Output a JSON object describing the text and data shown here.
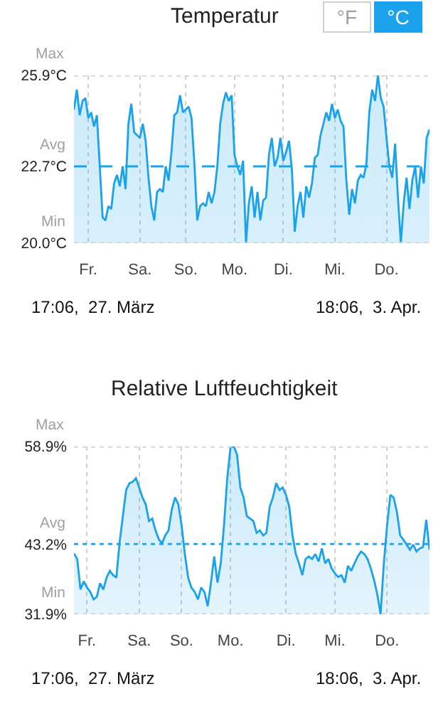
{
  "chart_data": [
    {
      "type": "area",
      "title": "Temperatur",
      "color": "#1aa3ec",
      "grid": "x",
      "ylim": [
        20.0,
        25.9
      ],
      "categories": [
        null,
        null,
        null,
        null,
        null,
        "Fr.",
        null,
        null,
        null,
        null,
        null,
        null,
        null,
        null,
        null,
        null,
        null,
        null,
        null,
        null,
        null,
        null,
        null,
        "Sa.",
        null,
        null,
        null,
        null,
        null,
        null,
        null,
        null,
        null,
        null,
        null,
        null,
        null,
        null,
        null,
        "So.",
        null,
        null,
        null,
        null,
        null,
        null,
        null,
        null,
        null,
        null,
        null,
        null,
        null,
        null,
        null,
        null,
        "Mo.",
        null,
        null,
        null,
        null,
        null,
        null,
        null,
        null,
        null,
        null,
        null,
        null,
        null,
        null,
        null,
        null,
        "Di.",
        null,
        null,
        null,
        null,
        null,
        null,
        null,
        null,
        null,
        null,
        null,
        null,
        null,
        null,
        null,
        null,
        null,
        "Mi.",
        null,
        null,
        null,
        null,
        null,
        null,
        null,
        null,
        null,
        null,
        null,
        null,
        null,
        null,
        null,
        null,
        null,
        "Do.",
        null,
        null,
        null,
        null,
        null,
        null,
        null,
        null,
        null,
        null,
        null,
        null,
        null,
        null,
        null
      ],
      "yticks": [
        {
          "value": 20.0,
          "label": "20.0°C"
        },
        {
          "value": 22.7,
          "label": "22.7°C"
        },
        {
          "value": 25.9,
          "label": "25.9°C"
        }
      ],
      "ref_lines": [
        {
          "axis": "y",
          "value": 25.9,
          "label": "Max",
          "color": "#cfcfcf",
          "line_style": "dotted"
        },
        {
          "axis": "y",
          "value": 22.7,
          "label": "Avg",
          "color": "#1aa3ec",
          "line_style": "dashed"
        },
        {
          "axis": "y",
          "value": 20.0,
          "label": "Min",
          "color": "#cfcfcf",
          "line_style": "dotted"
        }
      ],
      "annotations": [
        "°F",
        "°C",
        "17:06,  27. März",
        "18:06,  3. Apr."
      ],
      "values": [
        24.7,
        25.4,
        24.5,
        25.0,
        25.1,
        24.4,
        24.6,
        24.1,
        24.5,
        22.7,
        20.9,
        20.8,
        21.3,
        21.2,
        22.1,
        22.4,
        22.0,
        22.7,
        21.9,
        24.2,
        24.9,
        23.9,
        23.8,
        23.7,
        24.2,
        23.6,
        22.3,
        21.3,
        20.8,
        21.8,
        21.9,
        21.8,
        22.7,
        22.2,
        23.2,
        24.5,
        24.6,
        25.2,
        24.6,
        24.7,
        24.8,
        24.4,
        22.8,
        20.8,
        21.3,
        21.4,
        21.3,
        21.8,
        21.4,
        21.8,
        22.7,
        24.2,
        24.9,
        25.3,
        25.0,
        25.2,
        23.1,
        22.7,
        22.4,
        22.9,
        20.0,
        21.4,
        22.0,
        20.9,
        21.8,
        20.8,
        21.5,
        21.6,
        23.1,
        23.7,
        22.7,
        23.0,
        23.7,
        22.9,
        23.2,
        23.6,
        22.6,
        20.4,
        21.3,
        21.8,
        20.9,
        22.0,
        21.6,
        22.1,
        23.0,
        23.1,
        23.8,
        24.2,
        24.6,
        24.3,
        24.9,
        24.4,
        24.7,
        24.3,
        24.1,
        22.2,
        21.0,
        21.9,
        21.4,
        22.2,
        22.4,
        22.3,
        22.8,
        24.6,
        25.4,
        25.0,
        25.9,
        25.1,
        24.8,
        23.7,
        22.7,
        22.3,
        23.5,
        21.6,
        20.0,
        21.4,
        22.3,
        21.2,
        22.2,
        22.7,
        21.6,
        22.7,
        22.1,
        23.7,
        24.0
      ]
    },
    {
      "type": "area",
      "title": "Relative Luftfeuchtigkeit",
      "color": "#1aa3ec",
      "grid": "x",
      "ylim": [
        31.9,
        58.9
      ],
      "categories": [
        null,
        null,
        null,
        null,
        "Fr.",
        null,
        null,
        null,
        null,
        null,
        null,
        null,
        null,
        null,
        null,
        null,
        null,
        null,
        null,
        null,
        "Sa.",
        null,
        null,
        null,
        null,
        null,
        null,
        null,
        null,
        null,
        null,
        null,
        null,
        "So.",
        null,
        null,
        null,
        null,
        null,
        null,
        null,
        null,
        null,
        null,
        null,
        null,
        null,
        null,
        "Mo.",
        null,
        null,
        null,
        null,
        null,
        null,
        null,
        null,
        null,
        null,
        null,
        null,
        null,
        null,
        null,
        null,
        "Di.",
        null,
        null,
        null,
        null,
        null,
        null,
        null,
        null,
        null,
        null,
        null,
        null,
        null,
        null,
        "Mi.",
        null,
        null,
        null,
        null,
        null,
        null,
        null,
        null,
        null,
        null,
        null,
        null,
        null,
        null,
        null,
        "Do.",
        null,
        null,
        null,
        null,
        null,
        null,
        null,
        null,
        null,
        null,
        null,
        null,
        null
      ],
      "yticks": [
        {
          "value": 31.9,
          "label": "31.9%"
        },
        {
          "value": 43.2,
          "label": "43.2%"
        },
        {
          "value": 58.9,
          "label": "58.9%"
        }
      ],
      "ref_lines": [
        {
          "axis": "y",
          "value": 58.9,
          "label": "Max",
          "color": "#cfcfcf",
          "line_style": "dotted"
        },
        {
          "axis": "y",
          "value": 43.2,
          "label": "Avg",
          "color": "#1aa3ec",
          "line_style": "dotted"
        },
        {
          "axis": "y",
          "value": 31.9,
          "label": "Min",
          "color": "#cfcfcf",
          "line_style": "dotted"
        }
      ],
      "annotations": [
        "17:06,  27. März",
        "18:06,  3. Apr."
      ],
      "values": [
        41.7,
        40.8,
        35.9,
        37.2,
        36.2,
        35.5,
        34.3,
        34.7,
        36.9,
        35.9,
        37.8,
        38.9,
        38.2,
        37.8,
        43.5,
        47.7,
        51.9,
        53.0,
        53.2,
        53.8,
        52.3,
        50.7,
        49.6,
        46.9,
        47.3,
        45.4,
        44.0,
        43.3,
        44.6,
        45.4,
        48.8,
        50.7,
        49.6,
        46.2,
        41.6,
        37.8,
        36.2,
        35.5,
        34.3,
        36.2,
        35.5,
        33.2,
        37.0,
        41.2,
        37.0,
        40.1,
        46.2,
        53.8,
        58.8,
        58.9,
        57.6,
        52.3,
        50.7,
        47.7,
        47.3,
        46.9,
        45.0,
        45.4,
        44.6,
        45.0,
        49.2,
        50.7,
        53.0,
        51.9,
        52.3,
        51.1,
        49.2,
        44.6,
        41.6,
        40.1,
        38.2,
        40.8,
        41.2,
        40.8,
        41.6,
        40.4,
        42.5,
        40.1,
        40.8,
        39.3,
        38.5,
        37.9,
        38.2,
        37.0,
        39.7,
        38.9,
        40.1,
        41.2,
        42.0,
        41.6,
        40.8,
        39.3,
        37.4,
        35.1,
        31.9,
        40.1,
        46.2,
        51.1,
        50.7,
        48.4,
        44.6,
        43.9,
        43.1,
        42.3,
        43.1,
        42.0,
        42.5,
        42.7,
        47.1,
        42.3
      ]
    }
  ]
}
